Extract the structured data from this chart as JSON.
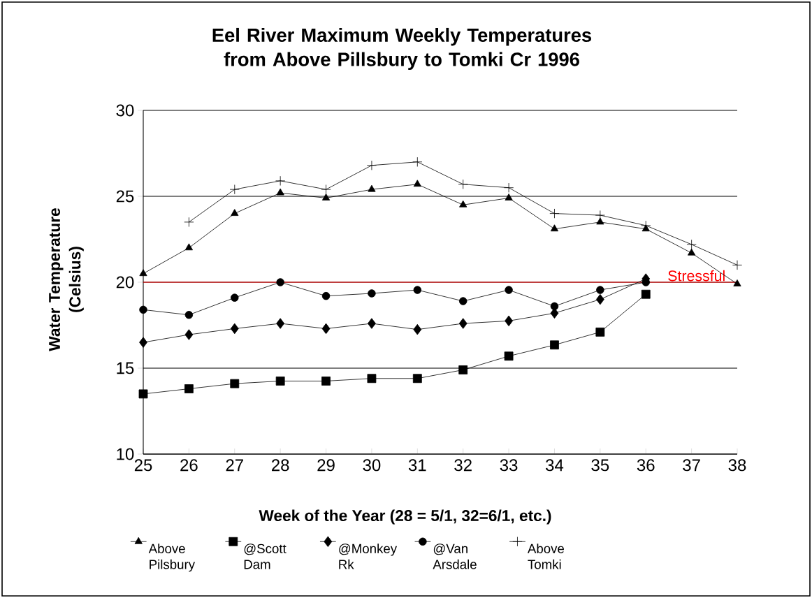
{
  "chart_data": {
    "type": "line",
    "title": "Eel River Maximum Weekly Temperatures from Above Pillsbury to Tomki Cr 1996",
    "xlabel": "Week of the Year (28 = 5/1, 32=6/1, etc.)",
    "ylabel": "Water Temperature (Celsius)",
    "x": [
      25,
      26,
      27,
      28,
      29,
      30,
      31,
      32,
      33,
      34,
      35,
      36,
      37,
      38
    ],
    "series": [
      {
        "name": "Above Pilsbury",
        "color": "#000000",
        "marker": "triangle",
        "values": [
          20.5,
          22.0,
          24.0,
          25.2,
          24.9,
          25.4,
          25.7,
          24.5,
          24.9,
          23.1,
          23.5,
          23.1,
          21.7,
          19.9
        ]
      },
      {
        "name": "@Scott Dam",
        "color": "#000000",
        "marker": "square",
        "values": [
          13.5,
          13.8,
          14.1,
          14.25,
          14.25,
          14.4,
          14.4,
          14.9,
          15.7,
          16.35,
          17.1,
          19.3,
          null,
          null
        ]
      },
      {
        "name": "@Monkey Rk",
        "color": "#000000",
        "marker": "diamond",
        "values": [
          16.5,
          16.95,
          17.3,
          17.6,
          17.3,
          17.6,
          17.25,
          17.6,
          17.75,
          18.2,
          19.0,
          20.2,
          null,
          null
        ]
      },
      {
        "name": "@Van Arsdale",
        "color": "#000000",
        "marker": "circle",
        "values": [
          18.4,
          18.1,
          19.1,
          20.0,
          19.2,
          19.35,
          19.55,
          18.9,
          19.55,
          18.6,
          19.55,
          20.0,
          null,
          null
        ]
      },
      {
        "name": "Above Tomki",
        "color": "#000000",
        "marker": "cross",
        "values": [
          null,
          23.5,
          25.4,
          25.9,
          25.4,
          26.8,
          27.0,
          25.7,
          25.5,
          24.0,
          23.9,
          23.3,
          22.2,
          21.0
        ]
      }
    ],
    "xlim": [
      25,
      38
    ],
    "xticks": [
      25,
      26,
      27,
      28,
      29,
      30,
      31,
      32,
      33,
      34,
      35,
      36,
      37,
      38
    ],
    "ylim": [
      10,
      30
    ],
    "yticks": [
      10,
      15,
      20,
      25,
      30
    ],
    "grid": "y",
    "legend": "bottom",
    "line_style": "solid",
    "ref_lines": [
      {
        "axis": "y",
        "value": 20,
        "label": "Stressful",
        "color": "#ff0000"
      }
    ]
  }
}
